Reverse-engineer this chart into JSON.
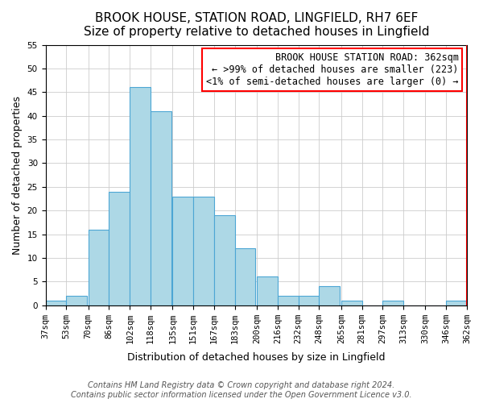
{
  "title": "BROOK HOUSE, STATION ROAD, LINGFIELD, RH7 6EF",
  "subtitle": "Size of property relative to detached houses in Lingfield",
  "xlabel": "Distribution of detached houses by size in Lingfield",
  "ylabel": "Number of detached properties",
  "bar_color": "#add8e6",
  "bar_edge_color": "#4da6d4",
  "bins": [
    37,
    53,
    70,
    86,
    102,
    118,
    135,
    151,
    167,
    183,
    200,
    216,
    232,
    248,
    265,
    281,
    297,
    313,
    330,
    346,
    362
  ],
  "counts": [
    1,
    2,
    16,
    24,
    46,
    41,
    23,
    23,
    19,
    12,
    6,
    2,
    2,
    4,
    1,
    0,
    1,
    0,
    0,
    1
  ],
  "tick_labels": [
    "37sqm",
    "53sqm",
    "70sqm",
    "86sqm",
    "102sqm",
    "118sqm",
    "135sqm",
    "151sqm",
    "167sqm",
    "183sqm",
    "200sqm",
    "216sqm",
    "232sqm",
    "248sqm",
    "265sqm",
    "281sqm",
    "297sqm",
    "313sqm",
    "330sqm",
    "346sqm",
    "362sqm"
  ],
  "ylim": [
    0,
    55
  ],
  "yticks": [
    0,
    5,
    10,
    15,
    20,
    25,
    30,
    35,
    40,
    45,
    50,
    55
  ],
  "annotation_box_text": "BROOK HOUSE STATION ROAD: 362sqm\n← >99% of detached houses are smaller (223)\n<1% of semi-detached houses are larger (0) →",
  "annotation_box_color": "#ff0000",
  "annotation_box_fill": "#ffffff",
  "grid_color": "#cccccc",
  "highlight_bar_index": 19,
  "highlight_bar_color": "#add8e6",
  "footnote1": "Contains HM Land Registry data © Crown copyright and database right 2024.",
  "footnote2": "Contains public sector information licensed under the Open Government Licence v3.0.",
  "title_fontsize": 11,
  "subtitle_fontsize": 10,
  "axis_label_fontsize": 9,
  "tick_fontsize": 7.5,
  "annotation_fontsize": 8.5,
  "footnote_fontsize": 7
}
